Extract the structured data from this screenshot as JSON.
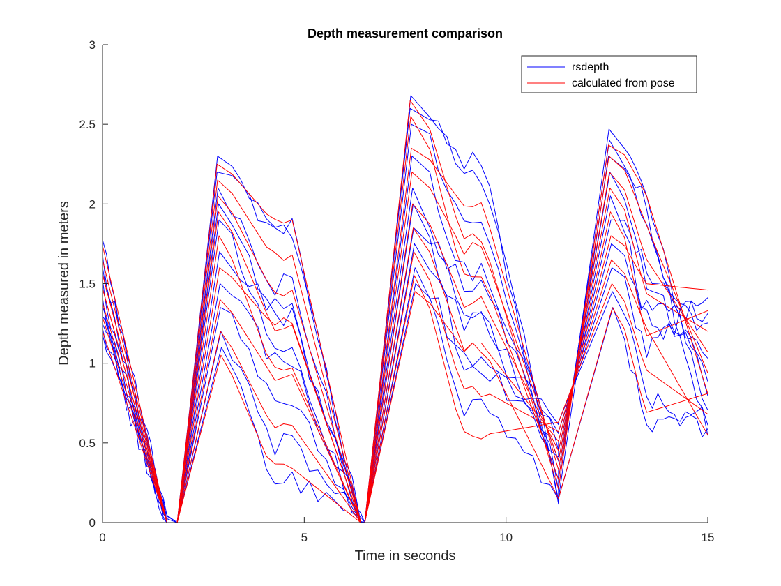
{
  "chart_data": {
    "type": "line",
    "title": "Depth measurement comparison",
    "xlabel": "Time in seconds",
    "ylabel": "Depth measured in meters",
    "xlim": [
      0,
      15
    ],
    "ylim": [
      0,
      3
    ],
    "xticks": [
      0,
      5,
      10,
      15
    ],
    "yticks": [
      0,
      0.5,
      1,
      1.5,
      2,
      2.5,
      3
    ],
    "xtick_labels": [
      "0",
      "5",
      "10",
      "15"
    ],
    "ytick_labels": [
      "0",
      "0.5",
      "1",
      "1.5",
      "2",
      "2.5",
      "3"
    ],
    "legend_position": "top-right",
    "grid": false,
    "series": [
      {
        "name": "rsdepth",
        "color": "#0000ff",
        "style": "noisy",
        "peaks": [
          2.2,
          2.6,
          2.3
        ]
      },
      {
        "name": "",
        "color": "#0000ff",
        "style": "noisy",
        "peaks": [
          2.3,
          2.68,
          2.47
        ]
      },
      {
        "name": "",
        "color": "#0000ff",
        "style": "noisy",
        "peaks": [
          2.1,
          2.5,
          2.4
        ]
      },
      {
        "name": "",
        "color": "#0000ff",
        "style": "noisy",
        "peaks": [
          2.0,
          2.3,
          2.2
        ]
      },
      {
        "name": "",
        "color": "#0000ff",
        "style": "noisy",
        "peaks": [
          1.9,
          2.1,
          2.05
        ]
      },
      {
        "name": "",
        "color": "#0000ff",
        "style": "noisy",
        "peaks": [
          1.7,
          2.0,
          1.9
        ]
      },
      {
        "name": "",
        "color": "#0000ff",
        "style": "noisy",
        "peaks": [
          1.5,
          1.85,
          1.75
        ]
      },
      {
        "name": "",
        "color": "#0000ff",
        "style": "noisy",
        "peaks": [
          1.35,
          1.75,
          1.6
        ]
      },
      {
        "name": "",
        "color": "#0000ff",
        "style": "noisy",
        "peaks": [
          1.2,
          1.6,
          1.45
        ]
      },
      {
        "name": "",
        "color": "#0000ff",
        "style": "noisy",
        "peaks": [
          1.1,
          1.5,
          1.35
        ]
      },
      {
        "name": "calculated from pose",
        "color": "#ff0000",
        "style": "smooth",
        "peaks": [
          2.25,
          2.65,
          2.37
        ]
      },
      {
        "name": "",
        "color": "#ff0000",
        "style": "smooth",
        "peaks": [
          2.15,
          2.55,
          2.3
        ]
      },
      {
        "name": "",
        "color": "#ff0000",
        "style": "smooth",
        "peaks": [
          2.05,
          2.35,
          2.2
        ]
      },
      {
        "name": "",
        "color": "#ff0000",
        "style": "smooth",
        "peaks": [
          1.95,
          2.2,
          2.1
        ]
      },
      {
        "name": "",
        "color": "#ff0000",
        "style": "smooth",
        "peaks": [
          1.8,
          2.0,
          1.95
        ]
      },
      {
        "name": "",
        "color": "#ff0000",
        "style": "smooth",
        "peaks": [
          1.6,
          1.85,
          1.8
        ]
      },
      {
        "name": "",
        "color": "#ff0000",
        "style": "smooth",
        "peaks": [
          1.4,
          1.7,
          1.65
        ]
      },
      {
        "name": "",
        "color": "#ff0000",
        "style": "smooth",
        "peaks": [
          1.2,
          1.55,
          1.5
        ]
      },
      {
        "name": "",
        "color": "#ff0000",
        "style": "smooth",
        "peaks": [
          1.05,
          1.45,
          1.35
        ]
      }
    ]
  }
}
